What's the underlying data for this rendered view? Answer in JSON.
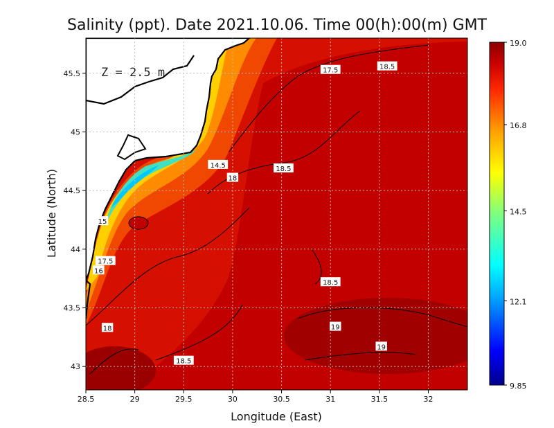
{
  "chart_data": {
    "type": "heatmap",
    "title": "Salinity (ppt). Date 2021.10.06. Time 00(h):00(m) GMT",
    "xlabel": "Longitude (East)",
    "ylabel": "Latitude (North)",
    "depth_label": "Z = 2.5 m",
    "xlim": [
      28.5,
      32.4
    ],
    "ylim": [
      42.8,
      45.8
    ],
    "x_ticks": [
      {
        "value": 28.5,
        "label": "28.5"
      },
      {
        "value": 29,
        "label": "29"
      },
      {
        "value": 29.5,
        "label": "29.5"
      },
      {
        "value": 30,
        "label": "30"
      },
      {
        "value": 30.5,
        "label": "30.5"
      },
      {
        "value": 31,
        "label": "31"
      },
      {
        "value": 31.5,
        "label": "31.5"
      },
      {
        "value": 32,
        "label": "32"
      }
    ],
    "y_ticks": [
      {
        "value": 43,
        "label": "43"
      },
      {
        "value": 43.5,
        "label": "43.5"
      },
      {
        "value": 44,
        "label": "44"
      },
      {
        "value": 44.5,
        "label": "44.5"
      },
      {
        "value": 45,
        "label": "45"
      },
      {
        "value": 45.5,
        "label": "45.5"
      }
    ],
    "grid": true,
    "colorbar": {
      "min": 9.85,
      "max": 19.0,
      "ticks": [
        {
          "value": 19.0,
          "label": "19.0"
        },
        {
          "value": 16.8,
          "label": "16.8"
        },
        {
          "value": 14.5,
          "label": "14.5"
        },
        {
          "value": 12.1,
          "label": "12.1"
        },
        {
          "value": 9.85,
          "label": "9.85"
        }
      ],
      "colors": [
        "#00008c",
        "#0000ff",
        "#00a0ff",
        "#00ffff",
        "#7fff7f",
        "#ffff00",
        "#ffa000",
        "#ff2a00",
        "#c80000",
        "#8c0000"
      ]
    },
    "contour_labels": [
      {
        "lon": 31.0,
        "lat": 45.53,
        "text": "17.5"
      },
      {
        "lon": 31.58,
        "lat": 45.56,
        "text": "18.5"
      },
      {
        "lon": 29.85,
        "lat": 44.72,
        "text": "14.5"
      },
      {
        "lon": 30.52,
        "lat": 44.69,
        "text": "18.5"
      },
      {
        "lon": 30.0,
        "lat": 44.61,
        "text": "18"
      },
      {
        "lon": 28.67,
        "lat": 44.24,
        "text": "15"
      },
      {
        "lon": 28.7,
        "lat": 43.9,
        "text": "17.5"
      },
      {
        "lon": 28.63,
        "lat": 43.82,
        "text": "16"
      },
      {
        "lon": 31.0,
        "lat": 43.72,
        "text": "18.5"
      },
      {
        "lon": 31.05,
        "lat": 43.34,
        "text": "19"
      },
      {
        "lon": 31.52,
        "lat": 43.17,
        "text": "19"
      },
      {
        "lon": 28.72,
        "lat": 43.33,
        "text": "18"
      },
      {
        "lon": 29.5,
        "lat": 43.05,
        "text": "18.5"
      }
    ]
  }
}
